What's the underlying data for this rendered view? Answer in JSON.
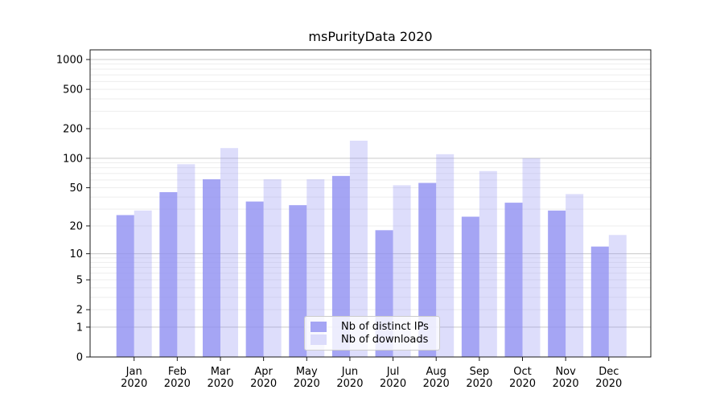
{
  "chart_data": {
    "type": "bar",
    "title": "msPurityData 2020",
    "categories": [
      "Jan",
      "Feb",
      "Mar",
      "Apr",
      "May",
      "Jun",
      "Jul",
      "Aug",
      "Sep",
      "Oct",
      "Nov",
      "Dec"
    ],
    "category_year": "2020",
    "series": [
      {
        "name": "Nb of distinct IPs",
        "values": [
          26,
          45,
          61,
          36,
          33,
          66,
          18,
          56,
          25,
          35,
          29,
          12
        ],
        "alpha": 0.8
      },
      {
        "name": "Nb of downloads",
        "values": [
          29,
          87,
          127,
          61,
          61,
          151,
          53,
          110,
          74,
          100,
          43,
          16
        ],
        "alpha": 0.3
      }
    ],
    "bar_base_color": "#8f8ff1",
    "xlabel": "",
    "ylabel": "",
    "yscale": "log1p",
    "yticks": [
      0,
      1,
      2,
      5,
      10,
      20,
      50,
      100,
      200,
      500,
      1000
    ],
    "ylim": [
      0,
      1250
    ],
    "grid": "on",
    "legend_position": "lower center"
  },
  "colors": {
    "series_ips": "#a5a5f4",
    "series_downloads": "#dcdcfb",
    "grid_major": "#c9c9c9",
    "grid_minor": "#ededed",
    "axis": "#1a1a1a",
    "tick_text": "#000000",
    "legend_border": "#cccccc",
    "background": "#ffffff"
  }
}
